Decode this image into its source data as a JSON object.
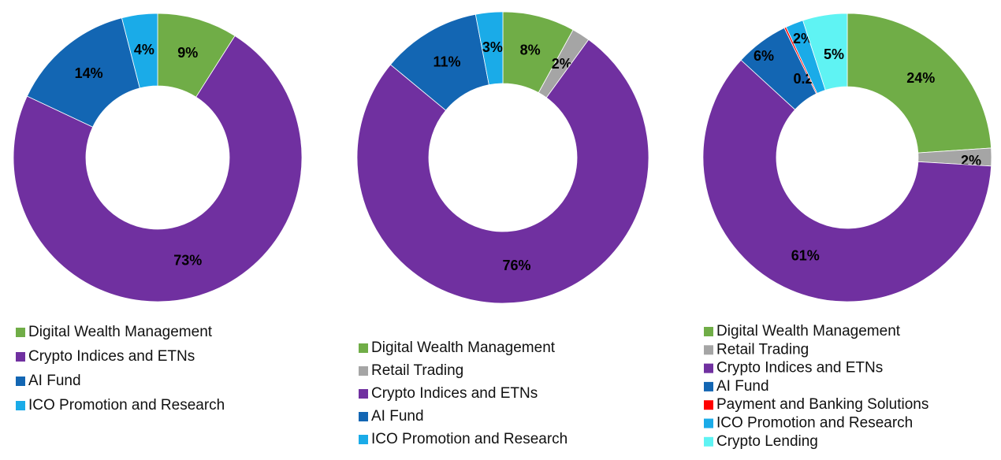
{
  "chart_data": [
    {
      "type": "donut",
      "categories": [
        "Digital Wealth Management",
        "Crypto Indices and ETNs",
        "AI Fund",
        "ICO Promotion and Research"
      ],
      "values": [
        9,
        73,
        14,
        4
      ],
      "value_labels": [
        "9%",
        "73%",
        "14%",
        "4%"
      ],
      "colors": [
        "#70ad47",
        "#7030a0",
        "#1366b3",
        "#1aabe8"
      ]
    },
    {
      "type": "donut",
      "categories": [
        "Digital Wealth Management",
        "Retail Trading",
        "Crypto Indices and ETNs",
        "AI Fund",
        "ICO Promotion and Research"
      ],
      "values": [
        8,
        2,
        76,
        11,
        3
      ],
      "value_labels": [
        "8%",
        "2%",
        "76%",
        "11%",
        "3%"
      ],
      "colors": [
        "#70ad47",
        "#a5a5a5",
        "#7030a0",
        "#1366b3",
        "#1aabe8"
      ]
    },
    {
      "type": "donut",
      "categories": [
        "Digital Wealth Management",
        "Retail Trading",
        "Crypto Indices and ETNs",
        "AI Fund",
        "Payment and Banking Solutions",
        "ICO Promotion and Research",
        "Crypto Lending"
      ],
      "values": [
        24,
        2,
        61,
        6,
        0.21,
        2,
        5
      ],
      "value_labels": [
        "24%",
        "2%",
        "61%",
        "6%",
        "0.21%",
        "2%",
        "5%"
      ],
      "colors": [
        "#70ad47",
        "#a5a5a5",
        "#7030a0",
        "#1366b3",
        "#ff0000",
        "#1aabe8",
        "#5ff3f3"
      ]
    }
  ]
}
